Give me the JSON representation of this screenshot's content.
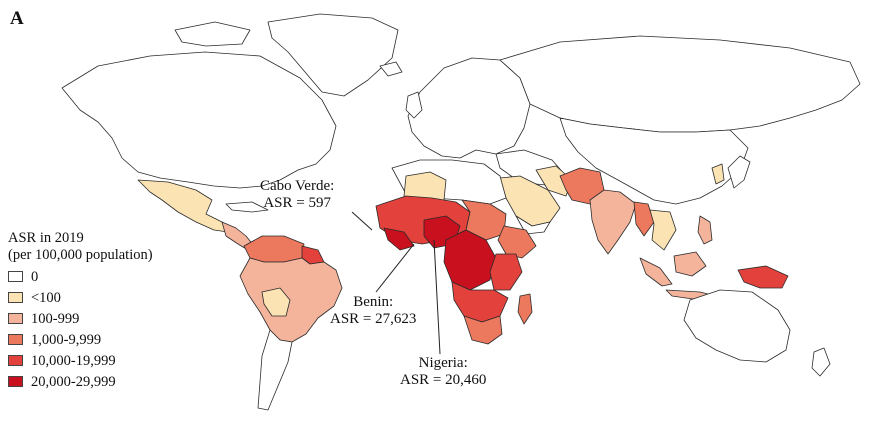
{
  "panel_label": "A",
  "legend": {
    "title_line1": "ASR in 2019",
    "title_line2": "(per 100,000 population)",
    "items": [
      {
        "label": "0",
        "color": "#ffffff"
      },
      {
        "label": "<100",
        "color": "#fbe3b4"
      },
      {
        "label": "100-999",
        "color": "#f4b39b"
      },
      {
        "label": "1,000-9,999",
        "color": "#ec785e"
      },
      {
        "label": "10,000-19,999",
        "color": "#e2413c"
      },
      {
        "label": "20,000-29,999",
        "color": "#c8101e"
      }
    ]
  },
  "annotations": {
    "cabo_verde": {
      "name": "Cabo Verde:",
      "value": "ASR = 597"
    },
    "benin": {
      "name": "Benin:",
      "value": "ASR = 27,623"
    },
    "nigeria": {
      "name": "Nigeria:",
      "value": "ASR = 20,460"
    }
  }
}
